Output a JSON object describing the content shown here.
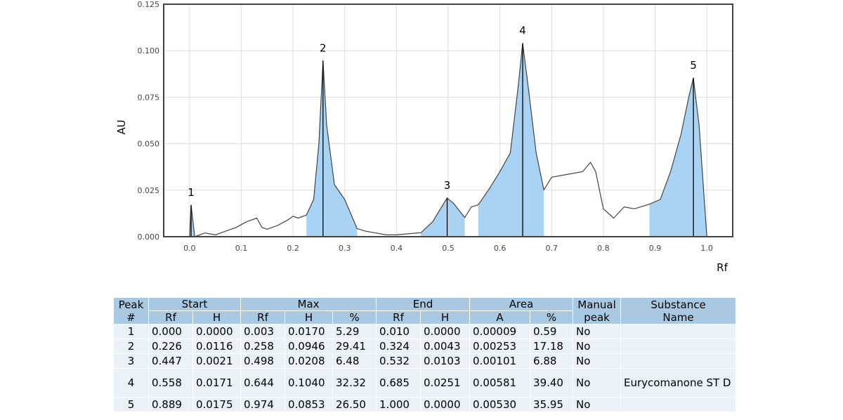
{
  "chart_data": {
    "type": "line",
    "xlabel": "Rf",
    "ylabel": "AU",
    "xlim": [
      -0.05,
      1.05
    ],
    "ylim": [
      0,
      0.125
    ],
    "xticks": [
      "0.0",
      "0.1",
      "0.2",
      "0.3",
      "0.4",
      "0.5",
      "0.6",
      "0.7",
      "0.8",
      "0.9",
      "1.0"
    ],
    "yticks": [
      "0.000",
      "0.025",
      "0.050",
      "0.075",
      "0.100",
      "0.125"
    ],
    "grid": true,
    "fill_color": "#a8d3f5",
    "line_color": "#444444",
    "x": [
      0.0,
      0.003,
      0.01,
      0.03,
      0.05,
      0.07,
      0.09,
      0.11,
      0.13,
      0.14,
      0.15,
      0.17,
      0.19,
      0.2,
      0.21,
      0.226,
      0.24,
      0.25,
      0.258,
      0.265,
      0.28,
      0.3,
      0.324,
      0.34,
      0.36,
      0.38,
      0.4,
      0.42,
      0.447,
      0.47,
      0.485,
      0.498,
      0.51,
      0.532,
      0.545,
      0.558,
      0.58,
      0.6,
      0.62,
      0.635,
      0.644,
      0.655,
      0.67,
      0.685,
      0.7,
      0.72,
      0.74,
      0.76,
      0.775,
      0.785,
      0.8,
      0.82,
      0.84,
      0.86,
      0.889,
      0.91,
      0.93,
      0.95,
      0.965,
      0.974,
      0.985,
      1.0
    ],
    "y": [
      0.0,
      0.017,
      0.0,
      0.002,
      0.001,
      0.003,
      0.005,
      0.008,
      0.01,
      0.005,
      0.004,
      0.006,
      0.009,
      0.011,
      0.01,
      0.0116,
      0.02,
      0.05,
      0.0946,
      0.06,
      0.028,
      0.02,
      0.0043,
      0.003,
      0.002,
      0.001,
      0.001,
      0.0015,
      0.0021,
      0.008,
      0.015,
      0.0208,
      0.018,
      0.0103,
      0.016,
      0.0171,
      0.026,
      0.035,
      0.045,
      0.08,
      0.104,
      0.08,
      0.045,
      0.0251,
      0.032,
      0.033,
      0.034,
      0.035,
      0.04,
      0.035,
      0.015,
      0.01,
      0.016,
      0.015,
      0.0175,
      0.02,
      0.035,
      0.055,
      0.075,
      0.0853,
      0.06,
      0.0
    ],
    "peaks": [
      {
        "label": "1",
        "start": 0.0,
        "max": 0.003,
        "end": 0.01
      },
      {
        "label": "2",
        "start": 0.226,
        "max": 0.258,
        "end": 0.324
      },
      {
        "label": "3",
        "start": 0.447,
        "max": 0.498,
        "end": 0.532
      },
      {
        "label": "4",
        "start": 0.558,
        "max": 0.644,
        "end": 0.685
      },
      {
        "label": "5",
        "start": 0.889,
        "max": 0.974,
        "end": 1.0
      }
    ]
  },
  "table": {
    "headers": {
      "peak": "Peak\n#",
      "start": "Start",
      "max": "Max",
      "end": "End",
      "area": "Area",
      "manual": "Manual\npeak",
      "substance": "Substance\nName",
      "rf": "Rf",
      "h": "H",
      "pct": "%",
      "a": "A"
    },
    "rows": [
      {
        "peak": "1",
        "start_rf": "0.000",
        "start_h": "0.0000",
        "max_rf": "0.003",
        "max_h": "0.0170",
        "max_pct": "5.29",
        "end_rf": "0.010",
        "end_h": "0.0000",
        "area_a": "0.00009",
        "area_pct": "0.59",
        "manual": "No",
        "substance": ""
      },
      {
        "peak": "2",
        "start_rf": "0.226",
        "start_h": "0.0116",
        "max_rf": "0.258",
        "max_h": "0.0946",
        "max_pct": "29.41",
        "end_rf": "0.324",
        "end_h": "0.0043",
        "area_a": "0.00253",
        "area_pct": "17.18",
        "manual": "No",
        "substance": ""
      },
      {
        "peak": "3",
        "start_rf": "0.447",
        "start_h": "0.0021",
        "max_rf": "0.498",
        "max_h": "0.0208",
        "max_pct": "6.48",
        "end_rf": "0.532",
        "end_h": "0.0103",
        "area_a": "0.00101",
        "area_pct": "6.88",
        "manual": "No",
        "substance": ""
      },
      {
        "peak": "4",
        "start_rf": "0.558",
        "start_h": "0.0171",
        "max_rf": "0.644",
        "max_h": "0.1040",
        "max_pct": "32.32",
        "end_rf": "0.685",
        "end_h": "0.0251",
        "area_a": "0.00581",
        "area_pct": "39.40",
        "manual": "No",
        "substance": "Eurycomanone ST D"
      },
      {
        "peak": "5",
        "start_rf": "0.889",
        "start_h": "0.0175",
        "max_rf": "0.974",
        "max_h": "0.0853",
        "max_pct": "26.50",
        "end_rf": "1.000",
        "end_h": "0.0000",
        "area_a": "0.00530",
        "area_pct": "35.95",
        "manual": "No",
        "substance": ""
      }
    ]
  }
}
